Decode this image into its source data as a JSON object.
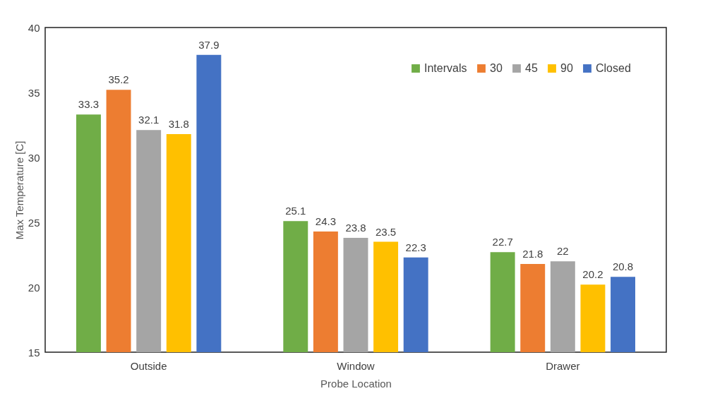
{
  "chart_data": {
    "type": "bar",
    "xlabel": "Probe Location",
    "ylabel": "Max Temperature [C]",
    "categories": [
      "Outside",
      "Window",
      "Drawer"
    ],
    "series": [
      {
        "name": "Intervals",
        "color": "#70ad47",
        "values": [
          33.3,
          25.1,
          22.7
        ]
      },
      {
        "name": "30",
        "color": "#ed7d31",
        "values": [
          35.2,
          24.3,
          21.8
        ]
      },
      {
        "name": "45",
        "color": "#a5a5a5",
        "values": [
          32.1,
          23.8,
          22
        ]
      },
      {
        "name": "90",
        "color": "#ffc000",
        "values": [
          31.8,
          23.5,
          20.2
        ]
      },
      {
        "name": "Closed",
        "color": "#4472c4",
        "values": [
          37.9,
          22.3,
          20.8
        ]
      }
    ],
    "ylim": [
      15,
      40
    ],
    "yticks": [
      15,
      20,
      25,
      30,
      35,
      40
    ],
    "data_labels": true,
    "legend": "top right"
  }
}
